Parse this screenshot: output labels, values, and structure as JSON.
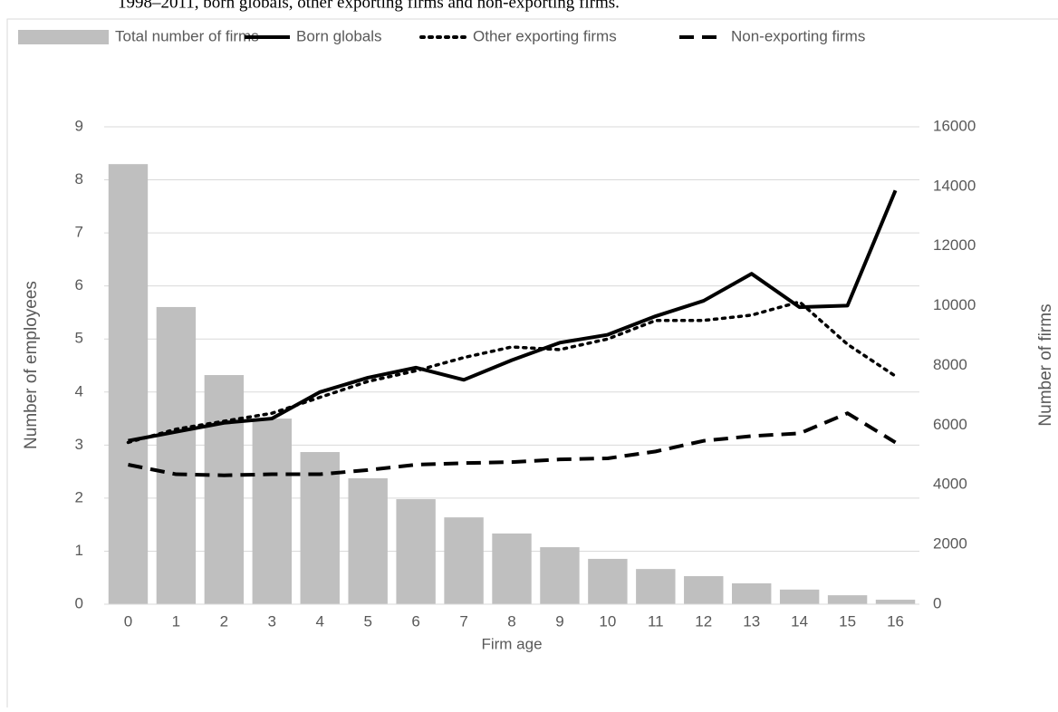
{
  "caption": "1998–2011, born globals, other exporting firms and non-exporting firms.",
  "chart_data": {
    "type": "combo",
    "x_label": "Firm age",
    "y_label": "Number of employees",
    "y2_label": "Number of firms",
    "categories": [
      "0",
      "1",
      "2",
      "3",
      "4",
      "5",
      "6",
      "7",
      "8",
      "9",
      "10",
      "11",
      "12",
      "13",
      "14",
      "15",
      "16"
    ],
    "series": [
      {
        "name": "Total number of firms",
        "type": "bar",
        "axis": "y2",
        "color": "#bfbfbf",
        "values": [
          14750,
          9960,
          7680,
          6220,
          5100,
          4220,
          3520,
          2910,
          2370,
          1910,
          1520,
          1180,
          940,
          700,
          490,
          300,
          150
        ]
      },
      {
        "name": "Born globals",
        "type": "line",
        "dash": "solid",
        "color": "#000000",
        "values": [
          3.08,
          3.25,
          3.42,
          3.5,
          4.0,
          4.27,
          4.46,
          4.23,
          4.6,
          4.93,
          5.08,
          5.43,
          5.72,
          6.23,
          5.6,
          5.63,
          7.8
        ]
      },
      {
        "name": "Other exporting firms",
        "type": "line",
        "dash": "dotted",
        "color": "#000000",
        "values": [
          3.05,
          3.3,
          3.45,
          3.6,
          3.9,
          4.2,
          4.4,
          4.65,
          4.85,
          4.8,
          5.0,
          5.35,
          5.35,
          5.45,
          5.7,
          4.9,
          4.3
        ]
      },
      {
        "name": "Non-exporting firms",
        "type": "line",
        "dash": "dashed",
        "color": "#000000",
        "values": [
          2.63,
          2.45,
          2.43,
          2.45,
          2.45,
          2.53,
          2.63,
          2.66,
          2.68,
          2.73,
          2.75,
          2.88,
          3.08,
          3.17,
          3.22,
          3.6,
          3.05
        ]
      }
    ],
    "ylim": [
      0,
      9
    ],
    "yticks": [
      0,
      1,
      2,
      3,
      4,
      5,
      6,
      7,
      8,
      9
    ],
    "y2lim": [
      0,
      16000
    ],
    "y2ticks": [
      0,
      2000,
      4000,
      6000,
      8000,
      10000,
      12000,
      14000,
      16000
    ],
    "grid": true,
    "legend": "top"
  }
}
